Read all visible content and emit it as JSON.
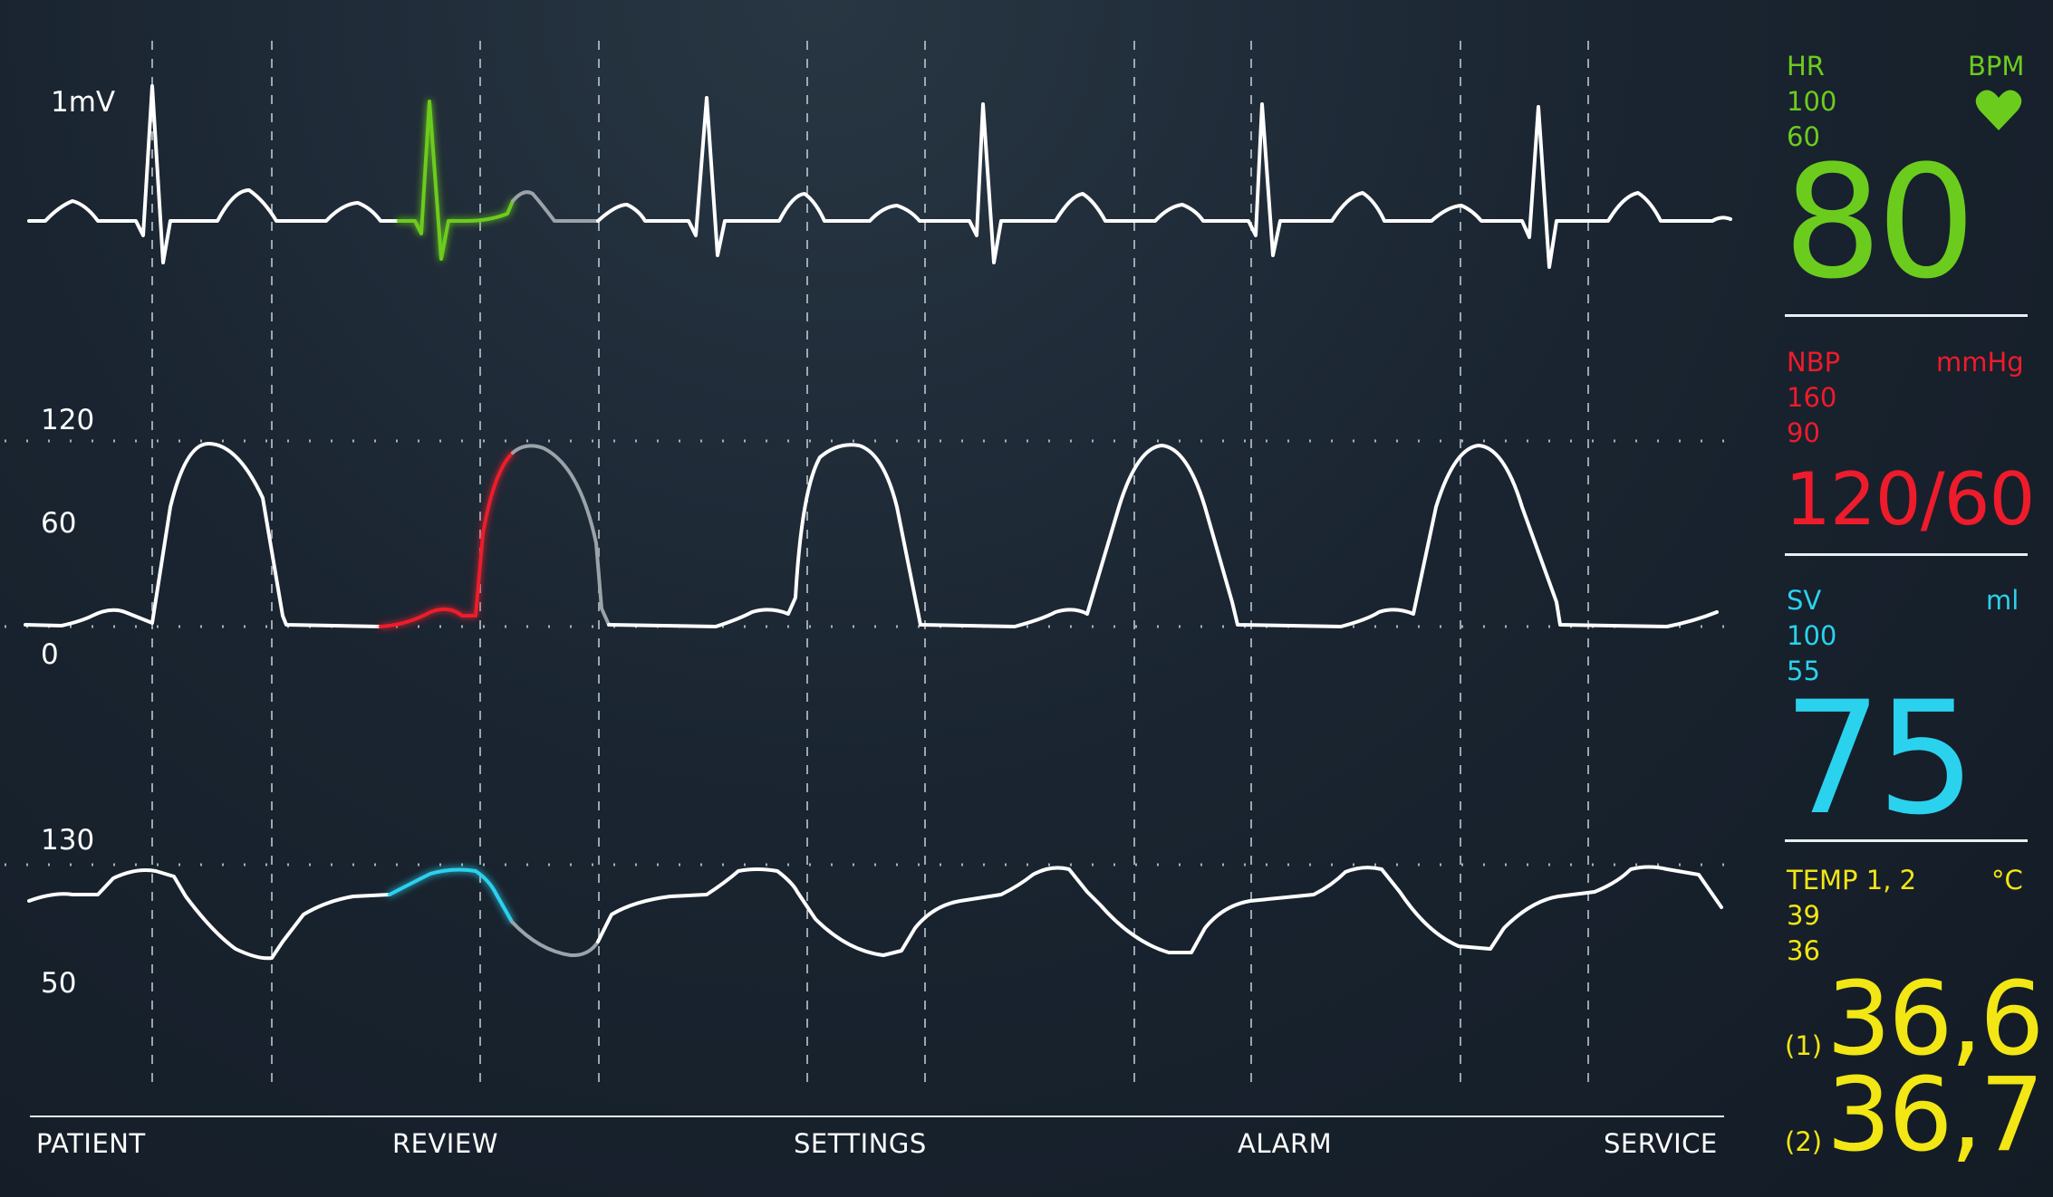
{
  "scale_labels": {
    "ecg": "1mV",
    "bp_top": "120",
    "bp_mid": "60",
    "bp_zero": "0",
    "sv_top": "130",
    "sv_bottom": "50"
  },
  "colors": {
    "hr": "#6ccc1e",
    "nbp": "#ee1b2b",
    "sv": "#2ad2ee",
    "temp": "#f2e614",
    "trace": "#ffffff"
  },
  "hr": {
    "label": "HR",
    "unit": "BPM",
    "upper": "100",
    "lower": "60",
    "value": "80",
    "icon": "heart-icon"
  },
  "nbp": {
    "label": "NBP",
    "unit": "mmHg",
    "upper": "160",
    "lower": "90",
    "value": "120/60"
  },
  "sv": {
    "label": "SV",
    "unit": "ml",
    "upper": "100",
    "lower": "55",
    "value": "75"
  },
  "temp": {
    "label": "TEMP 1, 2",
    "unit": "°C",
    "upper": "39",
    "lower": "36",
    "ch1_tag": "(1)",
    "ch1_value": "36,6",
    "ch2_tag": "(2)",
    "ch2_value": "36,7"
  },
  "menu": {
    "patient": "PATIENT",
    "review": "REVIEW",
    "settings": "SETTINGS",
    "alarm": "ALARM",
    "service": "SERVICE"
  }
}
